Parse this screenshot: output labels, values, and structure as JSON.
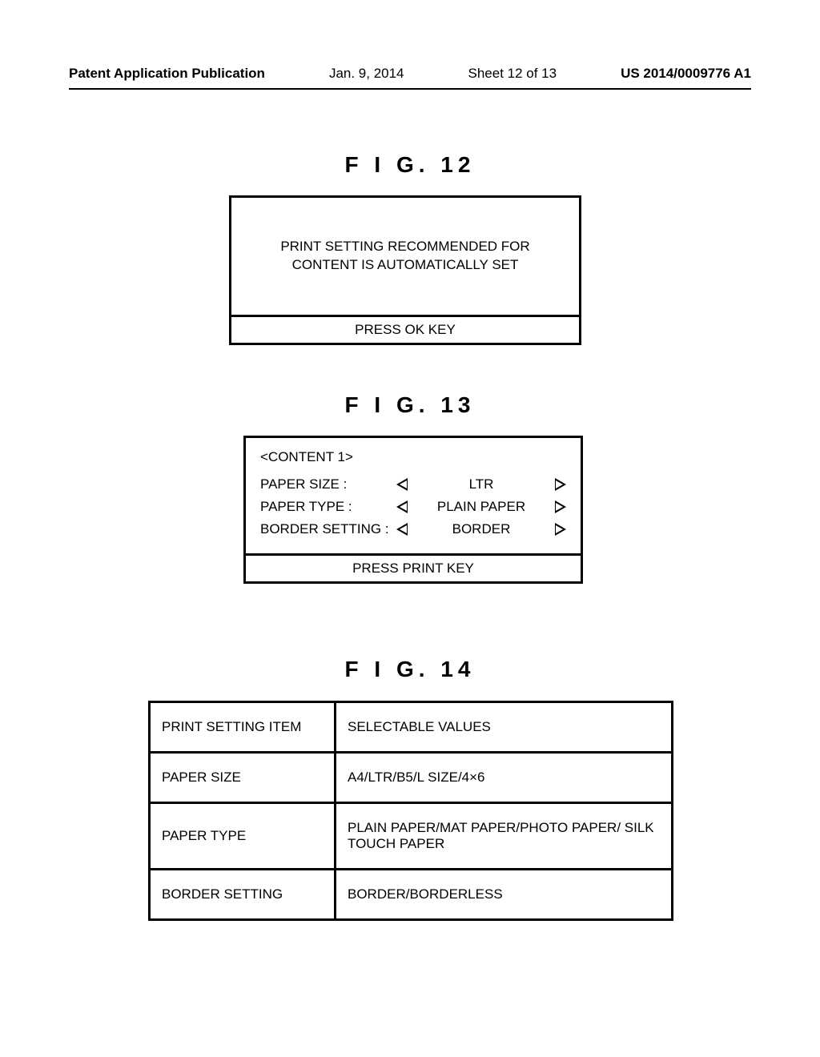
{
  "header": {
    "publication_label": "Patent Application Publication",
    "date": "Jan. 9, 2014",
    "sheet": "Sheet 12 of 13",
    "publication_number": "US 2014/0009776 A1"
  },
  "fig12": {
    "title": "F I G.  12",
    "message_line1": "PRINT SETTING RECOMMENDED FOR",
    "message_line2": "CONTENT IS AUTOMATICALLY SET",
    "footer": "PRESS OK KEY"
  },
  "fig13": {
    "title": "F I G.  13",
    "content_title": "<CONTENT 1>",
    "rows": [
      {
        "label": "PAPER SIZE :",
        "value": "LTR"
      },
      {
        "label": "PAPER TYPE :",
        "value": "PLAIN PAPER"
      },
      {
        "label": "BORDER SETTING :",
        "value": "BORDER"
      }
    ],
    "footer": "PRESS PRINT KEY"
  },
  "fig14": {
    "title": "F I G.  14",
    "header_item": "PRINT SETTING ITEM",
    "header_values": "SELECTABLE VALUES",
    "rows": [
      {
        "item": "PAPER SIZE",
        "values": "A4/LTR/B5/L SIZE/4×6"
      },
      {
        "item": "PAPER TYPE",
        "values": "PLAIN PAPER/MAT PAPER/PHOTO PAPER/ SILK TOUCH PAPER"
      },
      {
        "item": "BORDER SETTING",
        "values": "BORDER/BORDERLESS"
      }
    ]
  }
}
